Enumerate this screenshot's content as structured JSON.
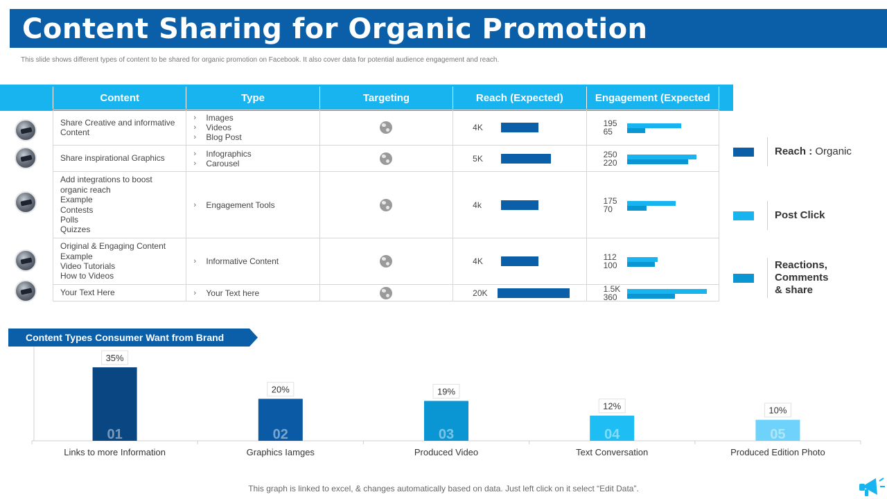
{
  "title": "Content Sharing for Organic Promotion",
  "subtitle": "This slide shows different types of content to be shared for organic promotion on Facebook. It also cover data for potential audience engagement and reach.",
  "table": {
    "headers": [
      "Content",
      "Type",
      "Targeting",
      "Reach (Expected)",
      "Engagement (Expected"
    ],
    "rows": [
      {
        "content": [
          "Share Creative and informative",
          "Content"
        ],
        "type": [
          "Images",
          "Videos",
          "Blog Post"
        ],
        "reach_label": "4K",
        "reach_value": 4,
        "engagement": [
          {
            "label": "195",
            "value": 195
          },
          {
            "label": "65",
            "value": 65
          }
        ]
      },
      {
        "content": [
          "Share inspirational Graphics"
        ],
        "type": [
          "Infographics",
          "Carousel"
        ],
        "reach_label": "5K",
        "reach_value": 5,
        "engagement": [
          {
            "label": "250",
            "value": 250
          },
          {
            "label": "220",
            "value": 220
          }
        ]
      },
      {
        "content": [
          "Add integrations to boost",
          "organic reach",
          "Example",
          "Contests",
          "Polls",
          "Quizzes"
        ],
        "type": [
          "Engagement Tools"
        ],
        "reach_label": "4k",
        "reach_value": 4,
        "engagement": [
          {
            "label": "175",
            "value": 175
          },
          {
            "label": "70",
            "value": 70
          }
        ]
      },
      {
        "content": [
          "Original & Engaging Content",
          "Example",
          "Video Tutorials",
          "How to Videos"
        ],
        "type": [
          "Informative Content"
        ],
        "reach_label": "4K",
        "reach_value": 4,
        "engagement": [
          {
            "label": "112",
            "value": 112
          },
          {
            "label": "100",
            "value": 100
          }
        ]
      },
      {
        "content": [
          "Your Text Here"
        ],
        "type": [
          "Your Text here"
        ],
        "reach_label": "20K",
        "reach_value": 20,
        "engagement": [
          {
            "label": "1.5K",
            "value": 1500
          },
          {
            "label": "360",
            "value": 360
          }
        ]
      }
    ]
  },
  "legend": [
    {
      "bold": "Reach : ",
      "normal": "Organic",
      "color": "#0a5fa8"
    },
    {
      "bold": "Post Click",
      "normal": "",
      "color": "#17b4f0"
    },
    {
      "bold": "Reactions, Comments & share",
      "normal": "",
      "color": "#0a96d2"
    }
  ],
  "colors": {
    "post_click": "#17b4f0",
    "reactions": "#0a96d2",
    "reach": "#0a5fa8"
  },
  "chart_banner": "Content Types Consumer Want from Brand",
  "chart_data": {
    "type": "bar",
    "categories": [
      "Links to more Information",
      "Graphics Iamges",
      "Produced Video",
      "Text Conversation",
      "Produced Edition Photo"
    ],
    "values": [
      35,
      20,
      19,
      12,
      10
    ],
    "value_labels": [
      "35%",
      "20%",
      "19%",
      "12%",
      "10%"
    ],
    "bar_numbers": [
      "01",
      "02",
      "03",
      "04",
      "05"
    ],
    "colors": [
      "#0a4682",
      "#0a5aa5",
      "#0a96d2",
      "#1ebef5",
      "#6ed2fa"
    ],
    "ylim": [
      0,
      35
    ],
    "grid": false
  },
  "footnote": "This graph is linked to excel, & changes automatically based on data. Just left click on it select “Edit Data”."
}
